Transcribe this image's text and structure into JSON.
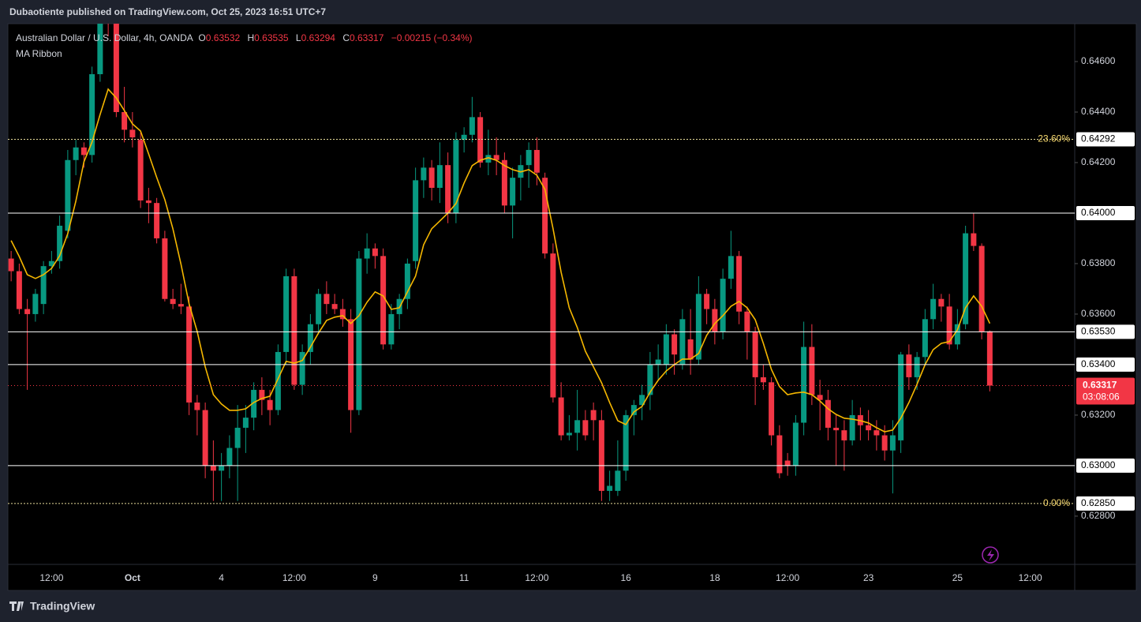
{
  "header": "Dubaotiente published on TradingView.com, Oct 25, 2023 16:51 UTC+7",
  "footer": "TradingView",
  "chart_data": {
    "type": "candlestick",
    "symbol": "Australian Dollar / U.S. Dollar, 4h, OANDA",
    "ohlc_letters": [
      "O",
      "H",
      "L",
      "C"
    ],
    "change": "−0.00215 (−0.34%)",
    "countdown": "03:08:06",
    "up_color": "#089981",
    "down_color": "#f23645",
    "categories": [
      null,
      null,
      null,
      null,
      null,
      "12:00",
      null,
      null,
      null,
      null,
      null,
      null,
      null,
      null,
      null,
      "Oct",
      null,
      null,
      null,
      null,
      null,
      null,
      null,
      null,
      null,
      null,
      "4",
      null,
      null,
      null,
      null,
      null,
      null,
      null,
      null,
      "12:00",
      null,
      null,
      null,
      null,
      null,
      null,
      null,
      null,
      null,
      "9",
      null,
      null,
      null,
      null,
      null,
      null,
      null,
      null,
      null,
      null,
      "11",
      null,
      null,
      null,
      null,
      null,
      null,
      null,
      null,
      "12:00",
      null,
      null,
      null,
      null,
      null,
      null,
      null,
      null,
      null,
      null,
      "16",
      null,
      null,
      null,
      null,
      null,
      null,
      null,
      null,
      null,
      null,
      "18",
      null,
      null,
      null,
      null,
      null,
      null,
      null,
      null,
      "12:00",
      null,
      null,
      null,
      null,
      null,
      null,
      null,
      null,
      null,
      "23",
      null,
      null,
      null,
      null,
      null,
      null,
      null,
      null,
      null,
      null,
      "25",
      null,
      null,
      null,
      null,
      null,
      null,
      null,
      null,
      "12:00",
      null,
      null,
      null,
      null,
      null
    ],
    "open": [
      0.6382,
      0.6377,
      0.6362,
      0.636,
      0.6364,
      0.6379,
      0.6381,
      0.6393,
      0.6421,
      0.6426,
      0.6423,
      0.6455,
      0.6488,
      0.6476,
      0.644,
      0.6433,
      0.6429,
      0.6405,
      0.6404,
      0.639,
      0.6366,
      0.6364,
      0.6363,
      0.6325,
      0.6322,
      0.63,
      0.6298,
      0.63,
      0.6307,
      0.6315,
      0.6319,
      0.633,
      0.6326,
      0.6322,
      0.6345,
      0.6375,
      0.6332,
      0.6345,
      0.6356,
      0.6368,
      0.6364,
      0.6362,
      0.6358,
      0.6322,
      0.6382,
      0.6386,
      0.6383,
      0.6348,
      0.636,
      0.6366,
      0.6381,
      0.6413,
      0.6418,
      0.641,
      0.6419,
      0.64,
      0.6429,
      0.6431,
      0.6438,
      0.642,
      0.6423,
      0.6421,
      0.6403,
      0.6414,
      0.6419,
      0.6425,
      0.6414,
      0.6384,
      0.6327,
      0.6312,
      0.6313,
      0.6318,
      0.6322,
      0.6318,
      0.629,
      0.629,
      0.6298,
      0.632,
      0.6324,
      0.6328,
      0.634,
      0.634,
      0.6352,
      0.634,
      0.635,
      0.6342,
      0.6368,
      0.6362,
      0.6353,
      0.6374,
      0.6383,
      0.6361,
      0.6353,
      0.6335,
      0.6333,
      0.6312,
      0.6302,
      0.63,
      0.6317,
      0.6347,
      0.6328,
      0.6326,
      0.6315,
      0.6314,
      0.631,
      0.632,
      0.6316,
      0.6314,
      0.6312,
      0.6306,
      0.631,
      0.6344,
      0.6335,
      0.6343,
      0.6358,
      0.6366,
      0.6363,
      0.6348,
      0.6356,
      0.6392,
      0.6387,
      0.63532,
      null,
      null,
      null,
      null,
      null,
      null,
      null,
      null,
      null,
      null
    ],
    "high": [
      0.6385,
      0.638,
      0.6366,
      0.637,
      0.6381,
      0.6385,
      0.6399,
      0.6425,
      0.6429,
      0.6428,
      0.6458,
      0.649,
      0.65,
      0.648,
      0.645,
      0.644,
      0.6432,
      0.641,
      0.6406,
      0.6393,
      0.637,
      0.6372,
      0.6367,
      0.6328,
      0.6325,
      0.631,
      0.6305,
      0.6312,
      0.6324,
      0.6324,
      0.6333,
      0.6335,
      0.633,
      0.6348,
      0.6378,
      0.6378,
      0.6348,
      0.636,
      0.637,
      0.6373,
      0.6368,
      0.6366,
      0.6362,
      0.6385,
      0.6392,
      0.6388,
      0.6386,
      0.6364,
      0.6368,
      0.6382,
      0.6418,
      0.6422,
      0.6421,
      0.6428,
      0.6424,
      0.6432,
      0.6434,
      0.6446,
      0.644,
      0.6433,
      0.643,
      0.6424,
      0.6418,
      0.6423,
      0.6428,
      0.643,
      0.6416,
      0.6388,
      0.6333,
      0.632,
      0.633,
      0.6322,
      0.6325,
      0.6322,
      0.6298,
      0.631,
      0.6322,
      0.6326,
      0.6332,
      0.6345,
      0.6348,
      0.6356,
      0.6354,
      0.6362,
      0.6362,
      0.6375,
      0.637,
      0.6366,
      0.6378,
      0.6393,
      0.6385,
      0.6363,
      0.6355,
      0.634,
      0.6335,
      0.6316,
      0.6305,
      0.632,
      0.6357,
      0.6356,
      0.6334,
      0.633,
      0.632,
      0.6318,
      0.6326,
      0.6323,
      0.6322,
      0.6318,
      0.6316,
      0.6318,
      0.6345,
      0.6348,
      0.6345,
      0.6362,
      0.6372,
      0.6368,
      0.6368,
      0.6362,
      0.6395,
      0.64,
      0.6388,
      0.63535,
      null,
      null,
      null,
      null,
      null,
      null,
      null,
      null,
      null,
      null
    ],
    "low": [
      0.6373,
      0.636,
      0.633,
      0.6357,
      0.636,
      0.6376,
      0.6378,
      0.639,
      0.6415,
      0.6418,
      0.642,
      0.6452,
      0.647,
      0.6438,
      0.6428,
      0.6426,
      0.6402,
      0.6396,
      0.6388,
      0.6365,
      0.6362,
      0.636,
      0.632,
      0.6312,
      0.6295,
      0.6286,
      0.6286,
      0.6295,
      0.6286,
      0.6305,
      0.6314,
      0.632,
      0.6316,
      0.632,
      0.634,
      0.633,
      0.6328,
      0.634,
      0.6352,
      0.636,
      0.636,
      0.6355,
      0.6313,
      0.632,
      0.6376,
      0.6378,
      0.6346,
      0.6346,
      0.6354,
      0.6362,
      0.6378,
      0.6406,
      0.6405,
      0.6404,
      0.6396,
      0.6396,
      0.6424,
      0.6428,
      0.6418,
      0.6415,
      0.6415,
      0.64,
      0.639,
      0.6405,
      0.641,
      0.6411,
      0.6382,
      0.6325,
      0.631,
      0.631,
      0.6306,
      0.631,
      0.631,
      0.6286,
      0.6286,
      0.6288,
      0.6294,
      0.6312,
      0.6318,
      0.6322,
      0.6334,
      0.6336,
      0.6336,
      0.6338,
      0.6336,
      0.634,
      0.6356,
      0.6348,
      0.635,
      0.637,
      0.6356,
      0.6342,
      0.6324,
      0.633,
      0.6308,
      0.6295,
      0.6296,
      0.6296,
      0.6312,
      0.6324,
      0.6314,
      0.631,
      0.63,
      0.6298,
      0.6308,
      0.631,
      0.631,
      0.6306,
      0.6302,
      0.6289,
      0.6305,
      0.633,
      0.633,
      0.634,
      0.6354,
      0.6357,
      0.6346,
      0.6346,
      0.6354,
      0.6385,
      0.635,
      0.63294,
      null,
      null,
      null,
      null,
      null,
      null,
      null,
      null,
      null,
      null
    ],
    "close": [
      0.6377,
      0.6362,
      0.636,
      0.6368,
      0.6379,
      0.6381,
      0.6395,
      0.6421,
      0.6426,
      0.6423,
      0.6455,
      0.6488,
      0.6478,
      0.644,
      0.6433,
      0.643,
      0.6405,
      0.6404,
      0.639,
      0.6366,
      0.6364,
      0.6363,
      0.6325,
      0.6322,
      0.63,
      0.6298,
      0.63,
      0.6307,
      0.6315,
      0.6319,
      0.633,
      0.6326,
      0.6322,
      0.6345,
      0.6375,
      0.6332,
      0.6345,
      0.6356,
      0.6368,
      0.6364,
      0.6362,
      0.6358,
      0.6322,
      0.6382,
      0.6386,
      0.6383,
      0.6348,
      0.636,
      0.6366,
      0.638,
      0.6413,
      0.6418,
      0.641,
      0.6419,
      0.64,
      0.6429,
      0.6431,
      0.6438,
      0.642,
      0.6423,
      0.6421,
      0.6403,
      0.6414,
      0.6419,
      0.6425,
      0.6416,
      0.6384,
      0.6327,
      0.6312,
      0.6313,
      0.6318,
      0.6312,
      0.6318,
      0.629,
      0.6292,
      0.6298,
      0.632,
      0.6324,
      0.6328,
      0.634,
      0.6342,
      0.6352,
      0.6344,
      0.6358,
      0.6342,
      0.6368,
      0.6362,
      0.6353,
      0.6374,
      0.6383,
      0.6361,
      0.6353,
      0.6335,
      0.6333,
      0.6312,
      0.6297,
      0.63,
      0.6317,
      0.6347,
      0.6328,
      0.6326,
      0.6315,
      0.6314,
      0.631,
      0.632,
      0.6316,
      0.6314,
      0.6312,
      0.6306,
      0.6312,
      0.6344,
      0.6335,
      0.6343,
      0.6358,
      0.6366,
      0.6363,
      0.6348,
      0.6356,
      0.6392,
      0.6387,
      0.6353,
      0.63317,
      null,
      null,
      null,
      null,
      null,
      null,
      null,
      null,
      null,
      null
    ],
    "series": [
      {
        "name": "MA Ribbon",
        "color": "#f5b700",
        "values": [
          0.63891,
          0.63828,
          0.63756,
          0.63741,
          0.63756,
          0.63781,
          0.63831,
          0.63919,
          0.64047,
          0.64203,
          0.64281,
          0.64391,
          0.64491,
          0.64456,
          0.64406,
          0.64353,
          0.64325,
          0.64234,
          0.64141,
          0.64053,
          0.63938,
          0.63797,
          0.63641,
          0.63531,
          0.63391,
          0.63281,
          0.63244,
          0.63219,
          0.63219,
          0.63225,
          0.6325,
          0.63266,
          0.63275,
          0.63344,
          0.63413,
          0.63406,
          0.63416,
          0.63469,
          0.63525,
          0.63575,
          0.63588,
          0.63594,
          0.63563,
          0.63594,
          0.63647,
          0.63688,
          0.63672,
          0.63619,
          0.63625,
          0.63688,
          0.6375,
          0.63875,
          0.63938,
          0.63969,
          0.64,
          0.64038,
          0.64119,
          0.64188,
          0.64209,
          0.64219,
          0.64209,
          0.64188,
          0.64172,
          0.64163,
          0.64172,
          0.6415,
          0.64094,
          0.63938,
          0.63766,
          0.63625,
          0.63547,
          0.63453,
          0.63391,
          0.63328,
          0.6325,
          0.63178,
          0.63163,
          0.63213,
          0.63234,
          0.63291,
          0.63338,
          0.63375,
          0.634,
          0.63422,
          0.63422,
          0.63444,
          0.63516,
          0.63563,
          0.63594,
          0.63631,
          0.6365,
          0.63625,
          0.63578,
          0.63484,
          0.63381,
          0.63313,
          0.63281,
          0.63288,
          0.63291,
          0.63281,
          0.63256,
          0.63225,
          0.63203,
          0.63188,
          0.63184,
          0.63178,
          0.63169,
          0.6315,
          0.63134,
          0.63141,
          0.63188,
          0.6325,
          0.63322,
          0.634,
          0.63459,
          0.63484,
          0.63491,
          0.63538,
          0.63625,
          0.63672,
          0.63631,
          0.63563,
          null,
          null,
          null,
          null,
          null,
          null,
          null,
          null,
          null,
          null
        ]
      }
    ],
    "ylim": [
      0.62609,
      0.6475
    ],
    "yticks": [
      {
        "value": 0.628,
        "label": "0.62800"
      },
      {
        "value": 0.632,
        "label": "0.63200"
      },
      {
        "value": 0.636,
        "label": "0.63600"
      },
      {
        "value": 0.638,
        "label": "0.63800"
      },
      {
        "value": 0.642,
        "label": "0.64200"
      },
      {
        "value": 0.644,
        "label": "0.64400"
      },
      {
        "value": 0.646,
        "label": "0.64600"
      }
    ],
    "levels": [
      {
        "value": 0.64292,
        "label": "0.64292",
        "fib": "23.60%",
        "style": "dotted"
      },
      {
        "value": 0.64,
        "label": "0.64000",
        "style": "solid"
      },
      {
        "value": 0.6353,
        "label": "0.63530",
        "style": "solid"
      },
      {
        "value": 0.634,
        "label": "0.63400",
        "style": "solid"
      },
      {
        "value": 0.63,
        "label": "0.63000",
        "style": "solid"
      },
      {
        "value": 0.6285,
        "label": "0.62850",
        "fib": "0.00%",
        "style": "dotted"
      }
    ],
    "grid": false
  }
}
